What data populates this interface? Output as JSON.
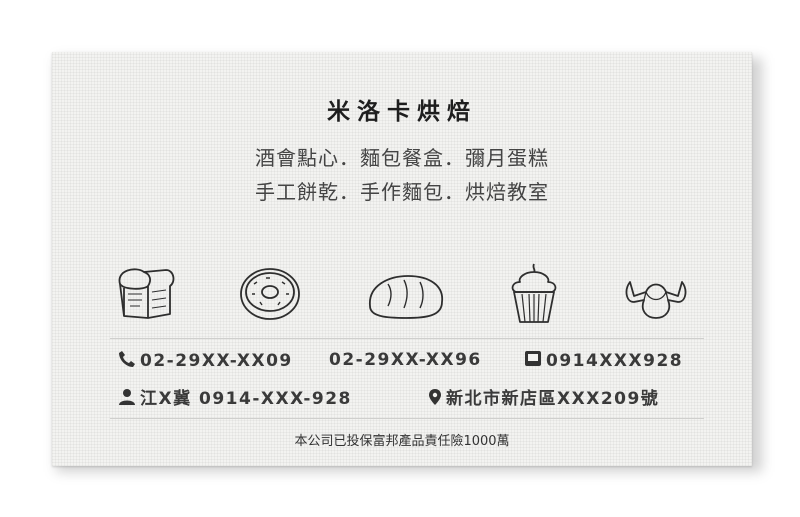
{
  "card": {
    "company_name": "米洛卡烘焙",
    "services_line1": "酒會點心．麵包餐盒．彌月蛋糕",
    "services_line2": "手工餅乾．手作麵包．烘焙教室",
    "icons": [
      "toast-bread-icon",
      "donut-icon",
      "bread-loaf-icon",
      "cupcake-icon",
      "croissant-icon"
    ],
    "phone": "02-29XX-XX09",
    "fax": "02-29XX-XX96",
    "mobile": "0914XXX928",
    "contact_person": "江X冀 0914-XXX-928",
    "address": "新北市新店區XXX209號",
    "footer_note": "本公司已投保富邦產品責任險1000萬"
  },
  "colors": {
    "text": "#3a3a3a",
    "card_bg": "#f3f3f1",
    "rule": "#cfcfcd"
  }
}
